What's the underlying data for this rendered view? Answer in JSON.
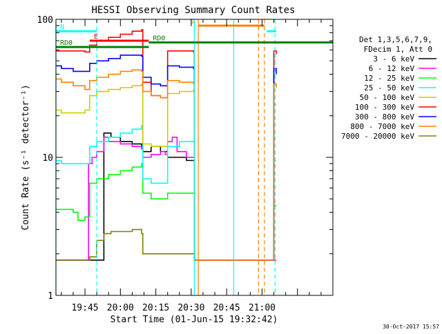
{
  "chart_data": {
    "type": "line",
    "title": "HESSI Observing Summary Count Rates",
    "xlabel": "Start Time (01-Jun-15 19:32:42)",
    "ylabel": "Count Rate (s⁻¹ detector⁻¹)",
    "timestamp": "30-Oct-2017 15:57",
    "y_scale": "log",
    "ylim": [
      1,
      100
    ],
    "y_ticks": [
      {
        "value": 1,
        "label": "1"
      },
      {
        "value": 10,
        "label": "10"
      },
      {
        "value": 100,
        "label": "100"
      }
    ],
    "x_unit": "minutes",
    "xlim": [
      1172.7,
      1290
    ],
    "x_ticks": [
      {
        "value": 1185,
        "label": "19:45"
      },
      {
        "value": 1200,
        "label": "20:00"
      },
      {
        "value": 1215,
        "label": "20:15"
      },
      {
        "value": 1230,
        "label": "20:30"
      },
      {
        "value": 1245,
        "label": "20:45"
      },
      {
        "value": 1260,
        "label": "21:00"
      }
    ],
    "grid": false,
    "legend": {
      "position": "right",
      "header": [
        "Det 1,3,5,6,7,9,",
        "FDecim 1, Att 0"
      ]
    },
    "series": [
      {
        "name": "3 - 6 keV",
        "color": "#000000",
        "x": [
          1172.7,
          1180,
          1185,
          1191,
          1193,
          1196,
          1200,
          1205,
          1209,
          1209.5,
          1213,
          1217,
          1220,
          1222,
          1225,
          1228,
          1231,
          1231.3
        ],
        "y": [
          1.8,
          1.8,
          1.8,
          1.8,
          15,
          14,
          13,
          12.5,
          12,
          11,
          12,
          11,
          10,
          10,
          10,
          9.5,
          9.5,
          1.8
        ]
      },
      {
        "name": "6 - 12 keV",
        "color": "#ff00ff",
        "x": [
          1172.7,
          1185,
          1186.5,
          1188,
          1190,
          1193,
          1195,
          1200,
          1205,
          1209,
          1209.5,
          1213,
          1217,
          1219,
          1220,
          1222,
          1224,
          1226,
          1228,
          1231,
          1231.3,
          1262,
          1262.5,
          1265,
          1266
        ],
        "y": [
          1.8,
          1.8,
          9,
          10,
          11,
          14,
          13,
          12.5,
          12,
          11.5,
          10,
          10.5,
          11,
          10.5,
          13,
          14,
          11,
          11,
          10,
          10,
          1.8,
          1.8,
          1.8,
          1.8,
          1.8
        ]
      },
      {
        "name": "12 - 25 keV",
        "color": "#00ff00",
        "x": [
          1172.7,
          1175,
          1180,
          1182,
          1185,
          1187,
          1190,
          1195,
          1200,
          1205,
          1209,
          1209.5,
          1213,
          1217,
          1220,
          1225,
          1231,
          1231.3,
          1262,
          1262.5,
          1265,
          1266
        ],
        "y": [
          4.2,
          4.2,
          4.0,
          3.5,
          3.7,
          6.5,
          7.0,
          7.5,
          8.0,
          8.5,
          9.0,
          5.5,
          5.0,
          5.0,
          5.5,
          5.5,
          5.5,
          1.8,
          1.8,
          1.8,
          4.5,
          4.5
        ]
      },
      {
        "name": "25 - 50 keV",
        "color": "#00ffff",
        "x": [
          1172.7,
          1175,
          1180,
          1185,
          1187,
          1190,
          1195,
          1200,
          1205,
          1209,
          1209.5,
          1213,
          1217,
          1220,
          1225,
          1231,
          1231.3,
          1262,
          1262.5,
          1265,
          1266
        ],
        "y": [
          9.5,
          9.0,
          9.0,
          9.0,
          12,
          13,
          14,
          15,
          16,
          17,
          7.0,
          6.5,
          6.5,
          12,
          13,
          13,
          1.8,
          1.8,
          1.8,
          9.5,
          9.5
        ]
      },
      {
        "name": "50 - 100 keV",
        "color": "#cccc00",
        "x": [
          1172.7,
          1175,
          1180,
          1185,
          1187,
          1190,
          1195,
          1200,
          1205,
          1209,
          1209.5,
          1213,
          1217,
          1220,
          1225,
          1231,
          1231.3,
          1262,
          1262.5,
          1265,
          1266
        ],
        "y": [
          22,
          21,
          21,
          22,
          28,
          30,
          31,
          32,
          33,
          34,
          12.5,
          12,
          12,
          29,
          30,
          31,
          1.8,
          1.8,
          1.8,
          24,
          24
        ]
      },
      {
        "name": "100 - 300 keV",
        "color": "#ff0000",
        "x": [
          1172.7,
          1175,
          1180,
          1185,
          1187,
          1190,
          1195,
          1200,
          1205,
          1209,
          1209.5,
          1213,
          1217,
          1220,
          1225,
          1231,
          1231.3,
          1262,
          1262.5,
          1265,
          1266
        ],
        "y": [
          59,
          59,
          59,
          58,
          65,
          70,
          74,
          78,
          82,
          84,
          35,
          28,
          27,
          59,
          59,
          58,
          1.8,
          1.8,
          1.8,
          59,
          56
        ]
      },
      {
        "name": "300 - 800 keV",
        "color": "#0000ff",
        "x": [
          1172.7,
          1175,
          1180,
          1185,
          1187,
          1190,
          1195,
          1200,
          1205,
          1209,
          1209.5,
          1213,
          1217,
          1220,
          1225,
          1231,
          1231.3,
          1262,
          1262.5,
          1265,
          1266
        ],
        "y": [
          46,
          44,
          42,
          42,
          48,
          50,
          52,
          55,
          55,
          54,
          38,
          34,
          33,
          46,
          45,
          44,
          1.8,
          1.8,
          1.8,
          44,
          40
        ]
      },
      {
        "name": "800 - 7000 keV",
        "color": "#ff8000",
        "x": [
          1172.7,
          1175,
          1180,
          1185,
          1187,
          1190,
          1195,
          1200,
          1205,
          1209,
          1209.5,
          1213,
          1217,
          1220,
          1225,
          1231,
          1231.3,
          1262,
          1262.5,
          1265,
          1266
        ],
        "y": [
          37,
          35,
          33,
          31,
          36,
          38,
          40,
          42,
          43,
          42,
          30,
          28,
          27,
          36,
          35,
          34,
          1.8,
          1.8,
          1.8,
          34,
          32
        ]
      },
      {
        "name": "7000 - 20000 keV",
        "color": "#808000",
        "x": [
          1172.7,
          1180,
          1185,
          1187,
          1190,
          1193,
          1196,
          1200,
          1205,
          1209,
          1209.5,
          1213,
          1217,
          1220,
          1225,
          1231,
          1231.3
        ],
        "y": [
          1.8,
          1.8,
          1.8,
          1.9,
          2.5,
          2.8,
          2.9,
          2.9,
          3.0,
          2.8,
          2.0,
          2.0,
          2.0,
          2.0,
          2.0,
          2.0,
          1.8
        ]
      }
    ],
    "state_bars": [
      {
        "label": "N",
        "color": "#00ffff",
        "level": 82,
        "x": [
          1172.7,
          1190
        ]
      },
      {
        "label": "",
        "color": "#00ffff",
        "level": 82,
        "x": [
          1262,
          1266
        ]
      },
      {
        "label": "E",
        "color": "#ff0000",
        "level": 70,
        "x": [
          1187,
          1212
        ]
      },
      {
        "label": "RD0",
        "color": "#008000",
        "level": 68,
        "x": [
          1212,
          1290
        ]
      },
      {
        "label": "RD0",
        "color": "#008000",
        "level": 63,
        "x": [
          1172.7,
          1212
        ]
      },
      {
        "label": "S",
        "color": "#ff8000",
        "level": 90,
        "x": [
          1233,
          1261
        ]
      }
    ],
    "vertical_lines": [
      {
        "x": 1172.7,
        "color": "#00ffff",
        "style": "solid"
      },
      {
        "x": 1190,
        "color": "#00ffff",
        "style": "dashed"
      },
      {
        "x": 1231.3,
        "color": "#00ffff",
        "style": "solid"
      },
      {
        "x": 1248,
        "color": "#00ffff",
        "style": "solid"
      },
      {
        "x": 1265.5,
        "color": "#00ffff",
        "style": "dashed"
      },
      {
        "x": 1233,
        "color": "#ff8000",
        "style": "solid"
      },
      {
        "x": 1258.5,
        "color": "#ff8000",
        "style": "dashed"
      },
      {
        "x": 1261,
        "color": "#ff8000",
        "style": "dashed"
      }
    ]
  }
}
